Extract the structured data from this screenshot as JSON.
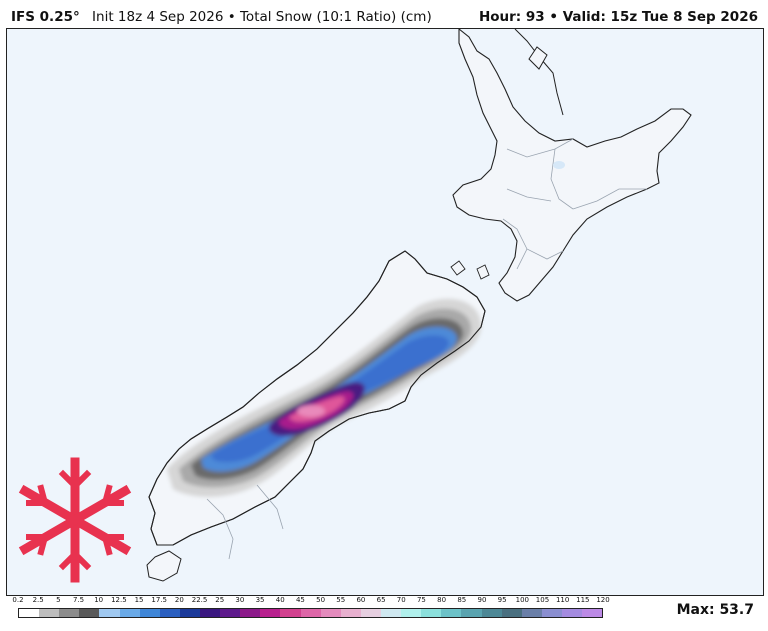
{
  "header": {
    "model": "IFS 0.25°",
    "description": "Init 18z 4 Sep 2026 • Total Snow (10:1 Ratio) (cm)",
    "valid": "Hour: 93 • Valid: 15z Tue 8 Sep 2026"
  },
  "icons": {
    "logo": "snowflake-icon",
    "logo_color": "#e8324f"
  },
  "colors": {
    "ocean": "#eef5fc",
    "land": "#f3f6fa",
    "coast": "#222222",
    "peak": "#e0569a"
  },
  "legend": {
    "ticks": [
      "0.2",
      "2.5",
      "5",
      "7.5",
      "10",
      "12.5",
      "15",
      "17.5",
      "20",
      "22.5",
      "25",
      "30",
      "35",
      "40",
      "45",
      "50",
      "55",
      "60",
      "65",
      "70",
      "75",
      "80",
      "85",
      "90",
      "95",
      "100",
      "105",
      "110",
      "115",
      "120"
    ],
    "colors": [
      "#ffffff",
      "#bdbdbd",
      "#8c8c8c",
      "#5a5a5a",
      "#9fc8f0",
      "#6aaae8",
      "#3f86d8",
      "#2a5fc0",
      "#1b3a9a",
      "#3a1780",
      "#5e1a8c",
      "#8c1a8a",
      "#b8208e",
      "#d2418f",
      "#de66a8",
      "#e48bbd",
      "#e8b0cf",
      "#e6cfe0",
      "#cfe8f0",
      "#b0f0ec",
      "#8be0dc",
      "#6cc2c8",
      "#5aa4b0",
      "#4d8896",
      "#4a7080",
      "#6a7fa8",
      "#8a8ed0",
      "#a48be0",
      "#bc8ae6"
    ]
  },
  "max_label": "Max: 53.7"
}
